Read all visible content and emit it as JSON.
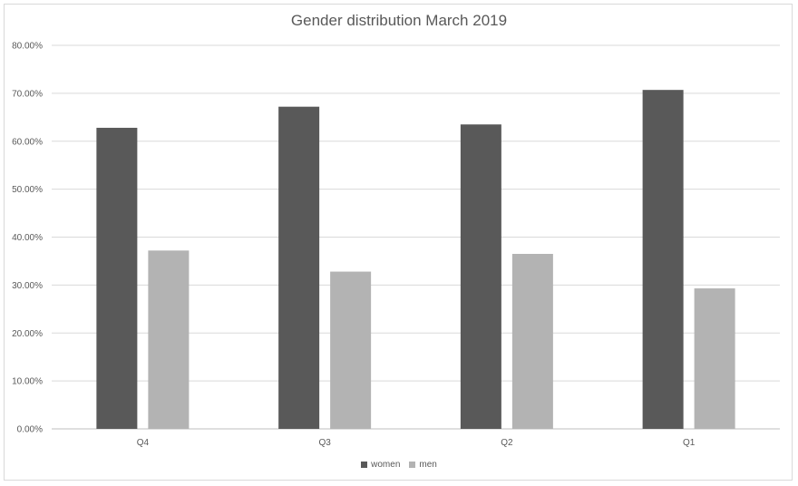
{
  "chart_data": {
    "type": "bar",
    "title": "Gender distribution March 2019",
    "categories": [
      "Q4",
      "Q3",
      "Q2",
      "Q1"
    ],
    "series": [
      {
        "name": "women",
        "values": [
          62.8,
          67.2,
          63.5,
          70.7
        ],
        "color": "#595959"
      },
      {
        "name": "men",
        "values": [
          37.2,
          32.8,
          36.5,
          29.3
        ],
        "color": "#b3b3b3"
      }
    ],
    "ylim": [
      0,
      80
    ],
    "yticks": [
      "0.00%",
      "10.00%",
      "20.00%",
      "30.00%",
      "40.00%",
      "50.00%",
      "60.00%",
      "70.00%",
      "80.00%"
    ],
    "grid": true,
    "legend_position": "bottom"
  }
}
